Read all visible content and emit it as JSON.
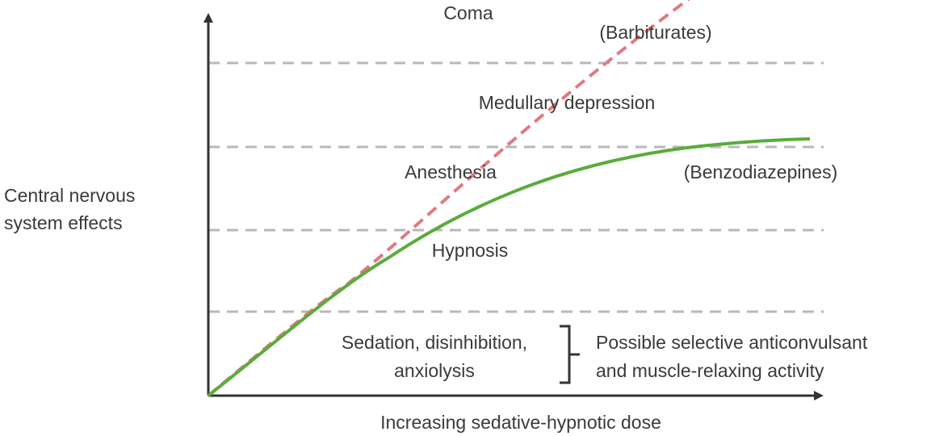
{
  "diagram": {
    "y_axis_label": [
      "Central nervous",
      "system effects"
    ],
    "x_axis_label": "Increasing sedative-hypnotic dose",
    "levels": [
      "Sedation, disinhibition,",
      "anxiolysis",
      "Hypnosis",
      "Anesthesia",
      "Medullary depression",
      "Coma"
    ],
    "level_labels": {
      "sedation_line1": "Sedation, disinhibition,",
      "sedation_line2": "anxiolysis",
      "hypnosis": "Hypnosis",
      "anesthesia": "Anesthesia",
      "medullary": "Medullary depression",
      "coma": "Coma"
    },
    "bracket_note": [
      "Possible selective anticonvulsant",
      "and muscle-relaxing activity"
    ],
    "series": [
      {
        "name": "(Barbiturates)",
        "style": "dashed",
        "color": "#e07a80"
      },
      {
        "name": "(Benzodiazepines)",
        "style": "solid",
        "color": "#5aab3c"
      }
    ],
    "colors": {
      "axis": "#333333",
      "gridline": "#b8b8b8",
      "text": "#3a3a3a"
    }
  }
}
